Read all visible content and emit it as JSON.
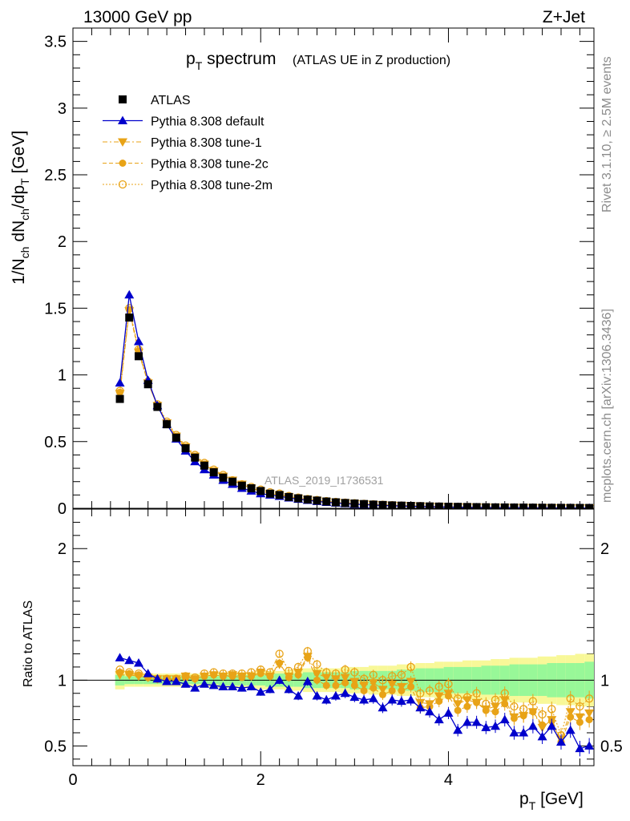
{
  "header": {
    "left": "13000 GeV pp",
    "right": "Z+Jet"
  },
  "title": {
    "main": "p",
    "main_sub": "T",
    "main_rest": " spectrum",
    "paren": "(ATLAS UE in Z production)"
  },
  "side_labels": {
    "top": "Rivet 3.1.10, ≥ 2.5M events",
    "bottom": "mcplots.cern.ch [arXiv:1306.3436]"
  },
  "watermark": "ATLAS_2019_I1736531",
  "colors": {
    "atlas": "#000000",
    "default": "#0000cc",
    "tune": "#e8a317",
    "band_inner": "#98f898",
    "band_outer": "#f8f898"
  },
  "chart_data": [
    {
      "type": "line",
      "panel": "main",
      "ylabel_parts": [
        "1/N",
        "ch",
        " dN",
        "ch",
        "/dp",
        "T",
        " [GeV]"
      ],
      "ylim": [
        0,
        3.6
      ],
      "xlim": [
        0,
        5.55
      ],
      "yticks": [
        "0",
        "0.5",
        "1",
        "1.5",
        "2",
        "2.5",
        "3",
        "3.5"
      ],
      "x": [
        0.5,
        0.6,
        0.7,
        0.8,
        0.9,
        1.0,
        1.1,
        1.2,
        1.3,
        1.4,
        1.5,
        1.6,
        1.7,
        1.8,
        1.9,
        2.0,
        2.1,
        2.2,
        2.3,
        2.4,
        2.5,
        2.6,
        2.7,
        2.8,
        2.9,
        3.0,
        3.1,
        3.2,
        3.3,
        3.4,
        3.5,
        3.6,
        3.7,
        3.8,
        3.9,
        4.0,
        4.1,
        4.2,
        4.3,
        4.4,
        4.5,
        4.6,
        4.7,
        4.8,
        4.9,
        5.0,
        5.1,
        5.2,
        5.3,
        5.4,
        5.5
      ],
      "series": [
        {
          "name": "ATLAS",
          "marker": "square",
          "values": [
            0.82,
            1.43,
            1.14,
            0.93,
            0.76,
            0.63,
            0.53,
            0.45,
            0.38,
            0.32,
            0.27,
            0.23,
            0.2,
            0.17,
            0.15,
            0.13,
            0.11,
            0.1,
            0.085,
            0.075,
            0.066,
            0.058,
            0.051,
            0.045,
            0.04,
            0.036,
            0.032,
            0.028,
            0.025,
            0.022,
            0.02,
            0.018,
            0.016,
            0.014,
            0.013,
            0.012,
            0.011,
            0.01,
            0.009,
            0.008,
            0.007,
            0.0065,
            0.006,
            0.0055,
            0.005,
            0.0045,
            0.004,
            0.0037,
            0.0034,
            0.0031,
            0.0028
          ]
        },
        {
          "name": "Pythia 8.308 default",
          "marker": "triangle-up",
          "values": [
            0.94,
            1.6,
            1.25,
            0.96,
            0.77,
            0.63,
            0.52,
            0.43,
            0.35,
            0.29,
            0.25,
            0.21,
            0.18,
            0.15,
            0.13,
            0.11,
            0.1,
            0.09,
            0.078,
            0.068,
            0.06,
            0.052,
            0.045,
            0.04,
            0.035,
            0.031,
            0.028,
            0.024,
            0.021,
            0.019,
            0.017,
            0.015,
            0.013,
            0.012,
            0.01,
            0.009,
            0.008,
            0.007,
            0.006,
            0.0055,
            0.005,
            0.0045,
            0.004,
            0.0035,
            0.003,
            0.0028,
            0.0025,
            0.0022,
            0.002,
            0.0018,
            0.0015
          ]
        },
        {
          "name": "Pythia 8.308 tune-1",
          "marker": "triangle-down",
          "values": [
            0.86,
            1.48,
            1.17,
            0.94,
            0.77,
            0.64,
            0.54,
            0.46,
            0.39,
            0.33,
            0.28,
            0.24,
            0.21,
            0.18,
            0.15,
            0.13,
            0.11,
            0.1,
            0.087,
            0.076,
            0.067,
            0.059,
            0.052,
            0.046,
            0.041,
            0.036,
            0.032,
            0.028,
            0.025,
            0.022,
            0.02,
            0.018,
            0.016,
            0.014,
            0.012,
            0.011,
            0.01,
            0.009,
            0.008,
            0.007,
            0.0065,
            0.006,
            0.0055,
            0.005,
            0.0045,
            0.004,
            0.0035,
            0.003,
            0.0028,
            0.0025,
            0.0022
          ]
        },
        {
          "name": "Pythia 8.308 tune-2c",
          "marker": "circle",
          "values": [
            0.87,
            1.49,
            1.18,
            0.94,
            0.77,
            0.64,
            0.54,
            0.46,
            0.39,
            0.33,
            0.28,
            0.24,
            0.21,
            0.18,
            0.15,
            0.13,
            0.11,
            0.1,
            0.087,
            0.076,
            0.067,
            0.059,
            0.052,
            0.046,
            0.041,
            0.036,
            0.032,
            0.028,
            0.025,
            0.022,
            0.02,
            0.018,
            0.016,
            0.014,
            0.012,
            0.011,
            0.01,
            0.009,
            0.008,
            0.007,
            0.0065,
            0.006,
            0.0055,
            0.005,
            0.0045,
            0.004,
            0.0035,
            0.003,
            0.0028,
            0.0025,
            0.0022
          ]
        },
        {
          "name": "Pythia 8.308 tune-2m",
          "marker": "circle-open",
          "values": [
            0.88,
            1.5,
            1.19,
            0.95,
            0.78,
            0.65,
            0.55,
            0.47,
            0.4,
            0.34,
            0.29,
            0.25,
            0.21,
            0.18,
            0.16,
            0.14,
            0.12,
            0.11,
            0.092,
            0.08,
            0.07,
            0.062,
            0.054,
            0.048,
            0.043,
            0.038,
            0.034,
            0.03,
            0.027,
            0.024,
            0.021,
            0.019,
            0.017,
            0.015,
            0.013,
            0.012,
            0.011,
            0.01,
            0.009,
            0.008,
            0.007,
            0.0065,
            0.006,
            0.0055,
            0.005,
            0.0045,
            0.004,
            0.0037,
            0.0034,
            0.003,
            0.0026
          ]
        }
      ]
    },
    {
      "type": "line",
      "panel": "ratio",
      "ylabel": "Ratio to ATLAS",
      "xlabel": "p",
      "xlabel_sub": "T",
      "xlabel_rest": " [GeV]",
      "ylim": [
        0.35,
        2.3
      ],
      "xlim": [
        0,
        5.55
      ],
      "xticks": [
        "0",
        "2",
        "4"
      ],
      "yticks": [
        "0.5",
        "1",
        "2"
      ],
      "x": [
        0.5,
        0.6,
        0.7,
        0.8,
        0.9,
        1.0,
        1.1,
        1.2,
        1.3,
        1.4,
        1.5,
        1.6,
        1.7,
        1.8,
        1.9,
        2.0,
        2.1,
        2.2,
        2.3,
        2.4,
        2.5,
        2.6,
        2.7,
        2.8,
        2.9,
        3.0,
        3.1,
        3.2,
        3.3,
        3.4,
        3.5,
        3.6,
        3.7,
        3.8,
        3.9,
        4.0,
        4.1,
        4.2,
        4.3,
        4.4,
        4.5,
        4.6,
        4.7,
        4.8,
        4.9,
        5.0,
        5.1,
        5.2,
        5.3,
        5.4,
        5.5
      ],
      "band_inner": [
        0.04,
        0.03,
        0.03,
        0.03,
        0.03,
        0.03,
        0.03,
        0.03,
        0.03,
        0.03,
        0.03,
        0.04,
        0.04,
        0.04,
        0.04,
        0.04,
        0.05,
        0.05,
        0.05,
        0.05,
        0.06,
        0.06,
        0.06,
        0.06,
        0.06,
        0.07,
        0.07,
        0.07,
        0.07,
        0.07,
        0.08,
        0.08,
        0.09,
        0.09,
        0.09,
        0.1,
        0.1,
        0.1,
        0.1,
        0.11,
        0.11,
        0.11,
        0.12,
        0.12,
        0.12,
        0.12,
        0.13,
        0.13,
        0.13,
        0.13,
        0.14
      ],
      "band_outer": [
        0.07,
        0.05,
        0.05,
        0.05,
        0.05,
        0.05,
        0.05,
        0.05,
        0.05,
        0.05,
        0.06,
        0.06,
        0.06,
        0.06,
        0.06,
        0.07,
        0.07,
        0.07,
        0.08,
        0.08,
        0.09,
        0.09,
        0.09,
        0.09,
        0.1,
        0.1,
        0.1,
        0.11,
        0.11,
        0.11,
        0.12,
        0.12,
        0.13,
        0.13,
        0.14,
        0.14,
        0.14,
        0.15,
        0.15,
        0.15,
        0.16,
        0.16,
        0.17,
        0.17,
        0.17,
        0.18,
        0.18,
        0.19,
        0.19,
        0.2,
        0.2
      ],
      "series": [
        {
          "name": "Pythia 8.308 default",
          "values": [
            1.17,
            1.15,
            1.13,
            1.05,
            1.01,
            0.99,
            0.99,
            0.97,
            0.94,
            0.97,
            0.96,
            0.95,
            0.95,
            0.94,
            0.95,
            0.91,
            0.93,
            1.0,
            0.93,
            0.88,
            0.99,
            0.88,
            0.85,
            0.88,
            0.9,
            0.87,
            0.85,
            0.86,
            0.79,
            0.85,
            0.84,
            0.85,
            0.79,
            0.76,
            0.7,
            0.75,
            0.62,
            0.68,
            0.68,
            0.64,
            0.65,
            0.7,
            0.6,
            0.6,
            0.65,
            0.57,
            0.65,
            0.53,
            0.62,
            0.48,
            0.5
          ]
        },
        {
          "name": "Pythia 8.308 tune-1",
          "values": [
            1.04,
            1.04,
            1.03,
            1.02,
            1.01,
            1.01,
            1.01,
            1.03,
            1.01,
            1.03,
            1.04,
            1.03,
            1.04,
            1.03,
            1.03,
            1.06,
            1.03,
            1.12,
            1.03,
            1.06,
            1.18,
            1.05,
            1.02,
            1.01,
            1.02,
            0.99,
            0.96,
            0.98,
            0.93,
            0.97,
            0.95,
            0.99,
            0.83,
            0.82,
            0.88,
            0.9,
            0.82,
            0.85,
            0.83,
            0.78,
            0.8,
            0.85,
            0.72,
            0.73,
            0.76,
            0.64,
            0.7,
            0.55,
            0.76,
            0.72,
            0.75
          ]
        },
        {
          "name": "Pythia 8.308 tune-2c",
          "values": [
            1.06,
            1.05,
            1.04,
            1.02,
            1.01,
            1.01,
            1.01,
            1.02,
            1.01,
            1.03,
            1.04,
            1.03,
            1.03,
            1.02,
            1.03,
            1.05,
            1.03,
            1.13,
            1.02,
            1.04,
            1.17,
            1.0,
            0.96,
            0.96,
            0.98,
            0.96,
            0.92,
            0.94,
            0.89,
            0.92,
            0.92,
            0.95,
            0.79,
            0.8,
            0.84,
            0.88,
            0.77,
            0.8,
            0.83,
            0.77,
            0.76,
            0.82,
            0.71,
            0.73,
            0.76,
            0.66,
            0.69,
            0.53,
            0.72,
            0.68,
            0.7
          ]
        },
        {
          "name": "Pythia 8.308 tune-2m",
          "values": [
            1.08,
            1.06,
            1.05,
            1.03,
            1.01,
            1.01,
            1.01,
            1.03,
            1.02,
            1.05,
            1.06,
            1.05,
            1.05,
            1.05,
            1.06,
            1.08,
            1.06,
            1.2,
            1.07,
            1.1,
            1.22,
            1.12,
            1.06,
            1.05,
            1.08,
            1.06,
            1.01,
            1.04,
            1.0,
            1.03,
            1.04,
            1.1,
            0.9,
            0.92,
            0.95,
            0.97,
            0.86,
            0.87,
            0.9,
            0.82,
            0.85,
            0.9,
            0.8,
            0.78,
            0.84,
            0.74,
            0.78,
            0.58,
            0.86,
            0.8,
            0.86
          ]
        }
      ]
    }
  ]
}
